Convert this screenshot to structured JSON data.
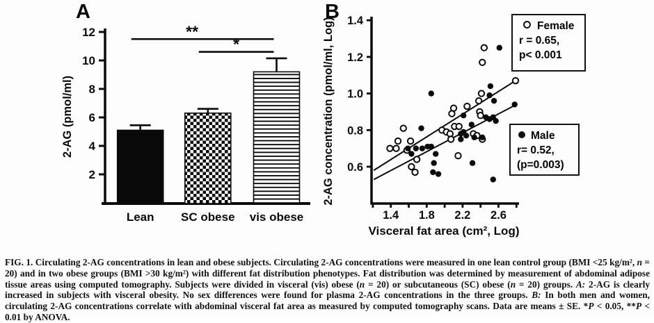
{
  "chart_data": [
    {
      "id": "panel_a",
      "type": "bar",
      "panel_label": "A",
      "ylabel": "2-AG (pmol/ml)",
      "yticks": [
        "2",
        "4",
        "6",
        "8",
        "10",
        "12"
      ],
      "ylim": [
        0,
        12.3
      ],
      "categories": [
        "Lean",
        "SC obese",
        "vis obese"
      ],
      "values": [
        5.1,
        6.3,
        9.2
      ],
      "errors_up": [
        0.35,
        0.3,
        0.95
      ],
      "bar_styles": [
        "solid_black",
        "checkerboard",
        "horizontal_stripes"
      ],
      "significance": [
        {
          "label": "**",
          "from": "Lean",
          "to": "vis obese",
          "y": 11.5
        },
        {
          "label": "*",
          "from": "SC obese",
          "to": "vis obese",
          "y": 10.6
        }
      ]
    },
    {
      "id": "panel_b",
      "type": "scatter",
      "panel_label": "B",
      "xlabel": "Visceral fat area (cm², Log)",
      "ylabel": "2-AG concentration (pmol/ml, Log)",
      "xlim": [
        1.2,
        2.8
      ],
      "ylim": [
        0.4,
        1.42
      ],
      "xticks_all": [
        1.2,
        1.4,
        1.6,
        1.8,
        2.0,
        2.2,
        2.4,
        2.6,
        2.8
      ],
      "xtick_labels": [
        "1.4",
        "1.8",
        "2.2",
        "2.6"
      ],
      "xtick_label_values": [
        1.4,
        1.8,
        2.2,
        2.6
      ],
      "ytick_labels": [
        "0.6",
        "0.8",
        "1.0",
        "1.2",
        "1.4"
      ],
      "ytick_label_values": [
        0.6,
        0.8,
        1.0,
        1.2,
        1.4
      ],
      "series": [
        {
          "name": "Female",
          "marker": "open",
          "legend": [
            "Female",
            "r = 0.65,",
            "p< 0.001"
          ],
          "regression": {
            "x1": 1.21,
            "y1": 0.58,
            "x2": 2.79,
            "y2": 1.07
          },
          "points": [
            [
              1.39,
              0.7
            ],
            [
              1.46,
              0.7
            ],
            [
              1.48,
              0.74
            ],
            [
              1.54,
              0.81
            ],
            [
              1.58,
              0.69
            ],
            [
              1.62,
              0.74
            ],
            [
              1.63,
              0.6
            ],
            [
              1.67,
              0.57
            ],
            [
              1.69,
              0.64
            ],
            [
              1.97,
              0.8
            ],
            [
              2.02,
              0.79
            ],
            [
              2.06,
              0.78
            ],
            [
              2.07,
              0.75
            ],
            [
              2.08,
              0.89
            ],
            [
              2.1,
              0.92
            ],
            [
              2.11,
              0.82
            ],
            [
              2.16,
              0.82
            ],
            [
              2.15,
              0.66
            ],
            [
              2.25,
              0.93
            ],
            [
              2.32,
              0.78
            ],
            [
              2.36,
              0.77
            ],
            [
              2.39,
              0.9
            ],
            [
              2.4,
              0.88
            ],
            [
              2.42,
              0.75
            ],
            [
              2.38,
              0.96
            ],
            [
              2.41,
              1.0
            ],
            [
              2.42,
              1.17
            ],
            [
              2.44,
              1.25
            ],
            [
              2.79,
              1.07
            ]
          ]
        },
        {
          "name": "Male",
          "marker": "filled",
          "legend": [
            "Male",
            "r= 0.52,",
            "(p=0.003)"
          ],
          "regression": {
            "x1": 1.21,
            "y1": 0.53,
            "x2": 2.78,
            "y2": 0.935
          },
          "points": [
            [
              1.59,
              0.7
            ],
            [
              1.63,
              0.67
            ],
            [
              1.68,
              0.7
            ],
            [
              1.74,
              0.81
            ],
            [
              1.75,
              0.7
            ],
            [
              1.81,
              0.71
            ],
            [
              1.85,
              1.0
            ],
            [
              1.85,
              0.71
            ],
            [
              1.87,
              0.57
            ],
            [
              1.9,
              0.67
            ],
            [
              1.88,
              0.62
            ],
            [
              1.93,
              0.56
            ],
            [
              2.18,
              0.78
            ],
            [
              2.21,
              0.79
            ],
            [
              2.24,
              0.77
            ],
            [
              2.21,
              0.88
            ],
            [
              2.18,
              0.75
            ],
            [
              2.3,
              0.83
            ],
            [
              2.31,
              0.62
            ],
            [
              2.33,
              0.76
            ],
            [
              2.42,
              0.76
            ],
            [
              2.46,
              0.87
            ],
            [
              2.5,
              0.86
            ],
            [
              2.54,
              0.87
            ],
            [
              2.57,
              0.85
            ],
            [
              2.51,
              1.04
            ],
            [
              2.5,
              0.99
            ],
            [
              2.55,
              0.96
            ],
            [
              2.54,
              0.53
            ],
            [
              2.61,
              1.25
            ],
            [
              2.78,
              0.94
            ]
          ]
        }
      ]
    }
  ],
  "caption": {
    "segments": [
      {
        "t": "FIG. 1. Circulating 2-AG concentrations in lean and obese subjects. Circulating 2-AG concentrations were measured in one lean control group (BMI <25 kg/m², ",
        "i": false
      },
      {
        "t": "n",
        "i": true
      },
      {
        "t": " = 20) and in two obese groups (BMI >30 kg/m²) with different fat distribution phenotypes. Fat distribution was determined by measurement of abdominal adipose tissue areas using computed tomography. Subjects were divided in visceral (vis) obese (",
        "i": false
      },
      {
        "t": "n",
        "i": true
      },
      {
        "t": " = 20) or subcutaneous (SC) obese (",
        "i": false
      },
      {
        "t": "n",
        "i": true
      },
      {
        "t": " = 20) groups. ",
        "i": false
      },
      {
        "t": "A:",
        "i": true
      },
      {
        "t": " 2-AG is clearly increased in subjects with visceral obesity. No sex differences were found for plasma 2-AG concentrations in the three groups. ",
        "i": false
      },
      {
        "t": "B:",
        "i": true
      },
      {
        "t": " In both men and women, circulating 2-AG concentrations correlate with abdominal visceral fat area as measured by computed tomography scans. Data are means ± SE. *",
        "i": false
      },
      {
        "t": "P",
        "i": true
      },
      {
        "t": " < 0.05, **",
        "i": false
      },
      {
        "t": "P",
        "i": true
      },
      {
        "t": " < 0.01 by ANOVA.",
        "i": false
      }
    ]
  },
  "colors": {
    "ink": "#0a0a0a",
    "background": "#fdfdfd"
  }
}
